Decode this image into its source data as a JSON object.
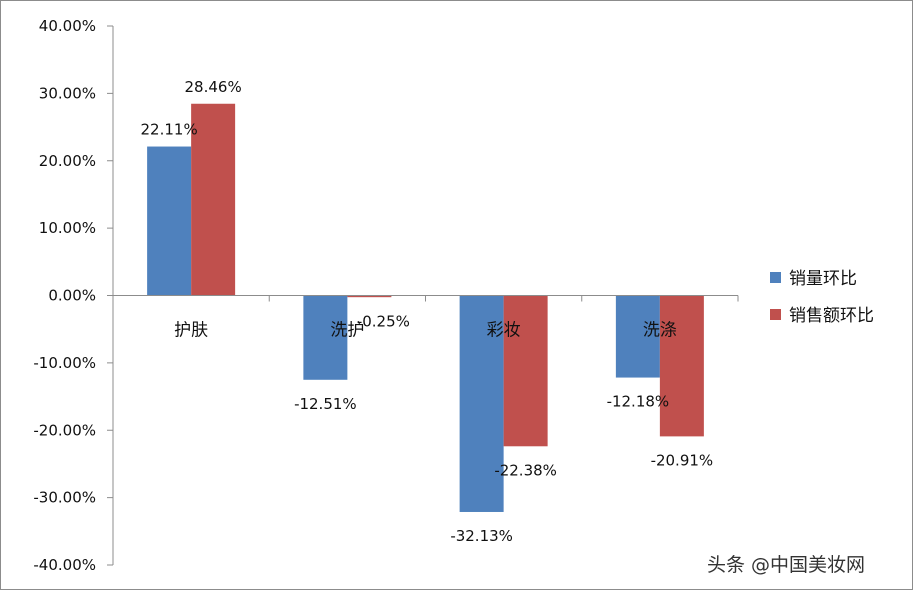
{
  "chart_data": {
    "type": "bar",
    "categories": [
      "护肤",
      "洗护",
      "彩妆",
      "洗涤"
    ],
    "series": [
      {
        "name": "销量环比",
        "values": [
          22.11,
          -12.51,
          -32.13,
          -12.18
        ],
        "labels": [
          "22.11%",
          "-12.51%",
          "-32.13%",
          "-12.18%"
        ],
        "color": "#4f81bd"
      },
      {
        "name": "销售额环比",
        "values": [
          28.46,
          -0.25,
          -22.38,
          -20.91
        ],
        "labels": [
          "28.46%",
          "-0.25%",
          "-22.38%",
          "-20.91%"
        ],
        "color": "#c0504d"
      }
    ],
    "ylim": [
      -40,
      40
    ],
    "yticks": [
      "40.00%",
      "30.00%",
      "20.00%",
      "10.00%",
      "0.00%",
      "-10.00%",
      "-20.00%",
      "-30.00%",
      "-40.00%"
    ],
    "grid": false,
    "legend_position": "right"
  },
  "watermark": "头条 @中国美妆网"
}
